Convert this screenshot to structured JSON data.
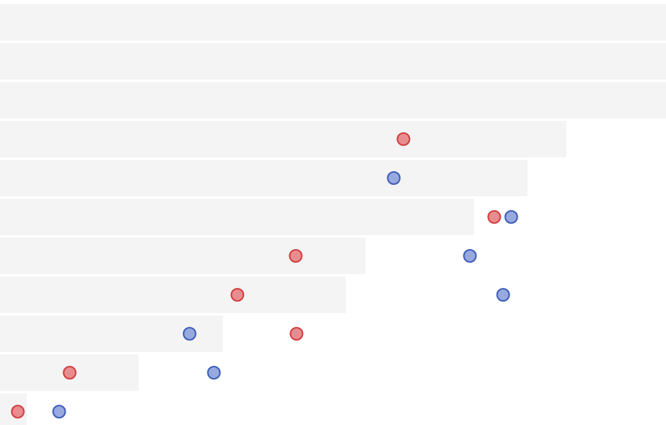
{
  "chart_data": {
    "type": "scatter",
    "title": "",
    "xlabel": "",
    "ylabel": "",
    "grid": false,
    "legend": "none",
    "xlim": [
      0,
      822
    ],
    "rows": 11,
    "bar_color": "#f4f4f4",
    "bars": [
      822,
      822,
      822,
      699,
      651,
      585,
      451,
      427,
      275,
      171,
      33
    ],
    "series": [
      {
        "color_fill": "#e88d8f",
        "color_stroke": "#d23b3d",
        "points": [
          {
            "row": 3,
            "x": 498
          },
          {
            "row": 5,
            "x": 610
          },
          {
            "row": 6,
            "x": 365
          },
          {
            "row": 7,
            "x": 293
          },
          {
            "row": 8,
            "x": 366
          },
          {
            "row": 9,
            "x": 86
          },
          {
            "row": 10,
            "x": 22
          }
        ]
      },
      {
        "color_fill": "#97a9de",
        "color_stroke": "#3a5bb8",
        "points": [
          {
            "row": 4,
            "x": 486
          },
          {
            "row": 5,
            "x": 631
          },
          {
            "row": 6,
            "x": 580
          },
          {
            "row": 7,
            "x": 621
          },
          {
            "row": 8,
            "x": 234
          },
          {
            "row": 9,
            "x": 264
          },
          {
            "row": 10,
            "x": 73
          }
        ]
      }
    ]
  }
}
